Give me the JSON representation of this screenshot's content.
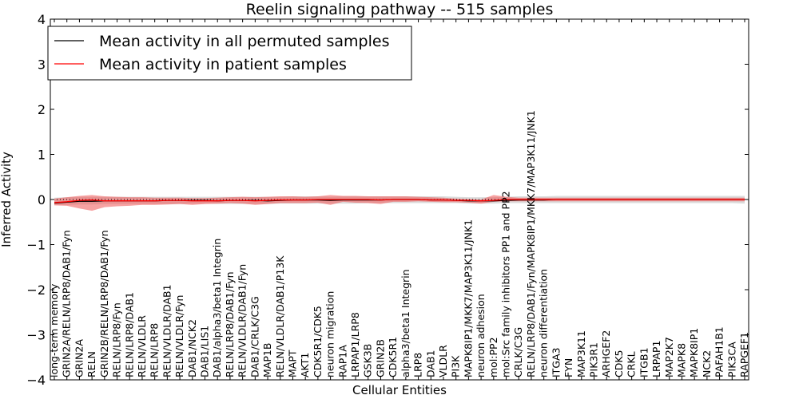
{
  "chart_data": {
    "type": "line",
    "title": "Reelin signaling pathway -- 515 samples",
    "xlabel": "Cellular Entities",
    "ylabel": "Inferred Activity",
    "ylim": [
      -4,
      4
    ],
    "yticks": [
      "4",
      "3",
      "2",
      "1",
      "0",
      "−1",
      "−2",
      "−3",
      "−4"
    ],
    "grid": false,
    "legend_position": "top-left",
    "categories": [
      "long-term memory",
      "GRIN2A/RELN/LRP8/DAB1/Fyn",
      "GRIN2A",
      "RELN",
      "GRIN2B/RELN/LRP8/DAB1/Fyn",
      "RELN/LRP8/Fyn",
      "RELN/LRP8/DAB1",
      "RELN/VLDLR",
      "RELN/LRP8",
      "RELN/VLDLR/DAB1",
      "RELN/VLDLR/Fyn",
      "DAB1/NCK2",
      "DAB1/LIS1",
      "DAB1/alpha3/beta1 Integrin",
      "RELN/LRP8/DAB1/Fyn",
      "RELN/VLDLR/DAB1/Fyn",
      "DAB1/CRLK/C3G",
      "MAP1B",
      "RELN/VLDLR/DAB1/P13K",
      "MAPT",
      "AKT1",
      "CDK5R1/CDK5",
      "neuron migration",
      "RAP1A",
      "LRPAP1/LRP8",
      "GSK3B",
      "GRIN2B",
      "CDK5R1",
      "alpha3/beta1 Integrin",
      "LRP8",
      "DAB1",
      "VLDLR",
      "PI3K",
      "MAPK8IP1/MKK7/MAP3K11/JNK1",
      "neuron adhesion",
      "mol:PP2",
      "mol:Src family inhibitors PP1 and PP2",
      "CRLK/C3G",
      "RELN/LRP8/DAB1/Fyn/MAPK8IP1/MKK7/MAP3K11/JNK1",
      "neuron differentiation",
      "ITGA3",
      "FYN",
      "MAP3K11",
      "PIK3R1",
      "ARHGEF2",
      "CDK5",
      "CRKL",
      "ITGB1",
      "LRPAP1",
      "MAP2K7",
      "MAPK8",
      "MAPK8IP1",
      "NCK2",
      "PAFAH1B1",
      "PIK3CA",
      "RAPGEF1"
    ],
    "series": [
      {
        "name": "Mean activity in all permuted samples",
        "color": "#000000",
        "values": [
          -0.08,
          -0.06,
          -0.04,
          -0.04,
          -0.03,
          -0.03,
          -0.03,
          -0.03,
          -0.03,
          -0.02,
          -0.02,
          -0.02,
          -0.02,
          -0.03,
          -0.02,
          -0.02,
          -0.02,
          -0.03,
          -0.02,
          -0.01,
          -0.01,
          -0.01,
          -0.02,
          -0.01,
          -0.01,
          -0.01,
          -0.01,
          0.0,
          0.0,
          0.0,
          -0.01,
          -0.01,
          -0.02,
          -0.03,
          -0.03,
          -0.03,
          -0.02,
          -0.01,
          -0.01,
          -0.01,
          0.0,
          0.0,
          0.0,
          0.0,
          0.0,
          0.0,
          0.0,
          0.0,
          0.0,
          0.0,
          0.0,
          0.0,
          0.0,
          0.0,
          0.0,
          0.0
        ],
        "band_low": [
          -0.12,
          -0.12,
          -0.11,
          -0.11,
          -0.1,
          -0.1,
          -0.1,
          -0.1,
          -0.1,
          -0.1,
          -0.1,
          -0.09,
          -0.09,
          -0.1,
          -0.1,
          -0.1,
          -0.1,
          -0.1,
          -0.09,
          -0.09,
          -0.09,
          -0.09,
          -0.09,
          -0.09,
          -0.09,
          -0.08,
          -0.08,
          -0.08,
          -0.08,
          -0.08,
          -0.08,
          -0.08,
          -0.08,
          -0.09,
          -0.09,
          -0.09,
          -0.08,
          -0.08,
          -0.08,
          -0.08,
          -0.08,
          -0.08,
          -0.08,
          -0.08,
          -0.08,
          -0.08,
          -0.08,
          -0.08,
          -0.08,
          -0.08,
          -0.08,
          -0.08,
          -0.08,
          -0.08,
          -0.08,
          -0.09
        ],
        "band_high": [
          0.04,
          0.05,
          0.06,
          0.06,
          0.06,
          0.06,
          0.06,
          0.06,
          0.06,
          0.06,
          0.06,
          0.06,
          0.06,
          0.06,
          0.06,
          0.06,
          0.06,
          0.06,
          0.06,
          0.07,
          0.07,
          0.07,
          0.06,
          0.07,
          0.07,
          0.07,
          0.07,
          0.07,
          0.07,
          0.07,
          0.07,
          0.07,
          0.06,
          0.05,
          0.05,
          0.05,
          0.06,
          0.07,
          0.07,
          0.07,
          0.08,
          0.08,
          0.08,
          0.08,
          0.08,
          0.08,
          0.08,
          0.08,
          0.08,
          0.08,
          0.08,
          0.08,
          0.08,
          0.08,
          0.08,
          0.08
        ]
      },
      {
        "name": "Mean activity in patient samples",
        "color": "#ff0000",
        "values": [
          -0.07,
          -0.05,
          -0.02,
          -0.01,
          -0.03,
          -0.03,
          -0.03,
          -0.03,
          -0.03,
          -0.02,
          -0.02,
          -0.03,
          -0.03,
          -0.03,
          -0.02,
          -0.02,
          -0.03,
          -0.02,
          -0.01,
          -0.01,
          -0.01,
          0.0,
          0.0,
          0.0,
          0.0,
          0.0,
          -0.01,
          0.0,
          0.0,
          0.0,
          -0.01,
          -0.01,
          -0.02,
          -0.02,
          -0.03,
          -0.02,
          0.0,
          0.0,
          0.0,
          0.0,
          0.0,
          0.0,
          0.0,
          0.0,
          0.0,
          0.0,
          0.0,
          0.0,
          0.0,
          0.0,
          0.0,
          0.0,
          0.0,
          0.0,
          0.0,
          0.0
        ],
        "band_low": [
          -0.13,
          -0.14,
          -0.2,
          -0.25,
          -0.17,
          -0.15,
          -0.14,
          -0.12,
          -0.12,
          -0.11,
          -0.1,
          -0.12,
          -0.1,
          -0.09,
          -0.08,
          -0.09,
          -0.12,
          -0.1,
          -0.08,
          -0.08,
          -0.08,
          -0.07,
          -0.12,
          -0.05,
          -0.07,
          -0.08,
          -0.1,
          -0.05,
          -0.05,
          -0.04,
          -0.05,
          -0.06,
          -0.06,
          -0.07,
          -0.09,
          -0.05,
          -0.04,
          -0.04,
          -0.04,
          -0.04,
          -0.04,
          -0.04,
          -0.04,
          -0.04,
          -0.04,
          -0.04,
          -0.04,
          -0.04,
          -0.04,
          -0.04,
          -0.04,
          -0.04,
          -0.04,
          -0.04,
          -0.04,
          -0.04
        ],
        "band_high": [
          0.02,
          0.05,
          0.08,
          0.1,
          0.07,
          0.06,
          0.05,
          0.05,
          0.04,
          0.04,
          0.04,
          0.03,
          0.03,
          0.04,
          0.05,
          0.06,
          0.05,
          0.06,
          0.07,
          0.07,
          0.06,
          0.07,
          0.1,
          0.08,
          0.08,
          0.07,
          0.07,
          0.07,
          0.07,
          0.06,
          0.05,
          0.04,
          0.02,
          0.01,
          0.0,
          0.1,
          0.06,
          0.04,
          0.04,
          0.04,
          0.04,
          0.04,
          0.04,
          0.04,
          0.04,
          0.04,
          0.04,
          0.04,
          0.04,
          0.04,
          0.04,
          0.04,
          0.04,
          0.04,
          0.04,
          0.04
        ]
      }
    ],
    "zero_line_dotted": true
  }
}
